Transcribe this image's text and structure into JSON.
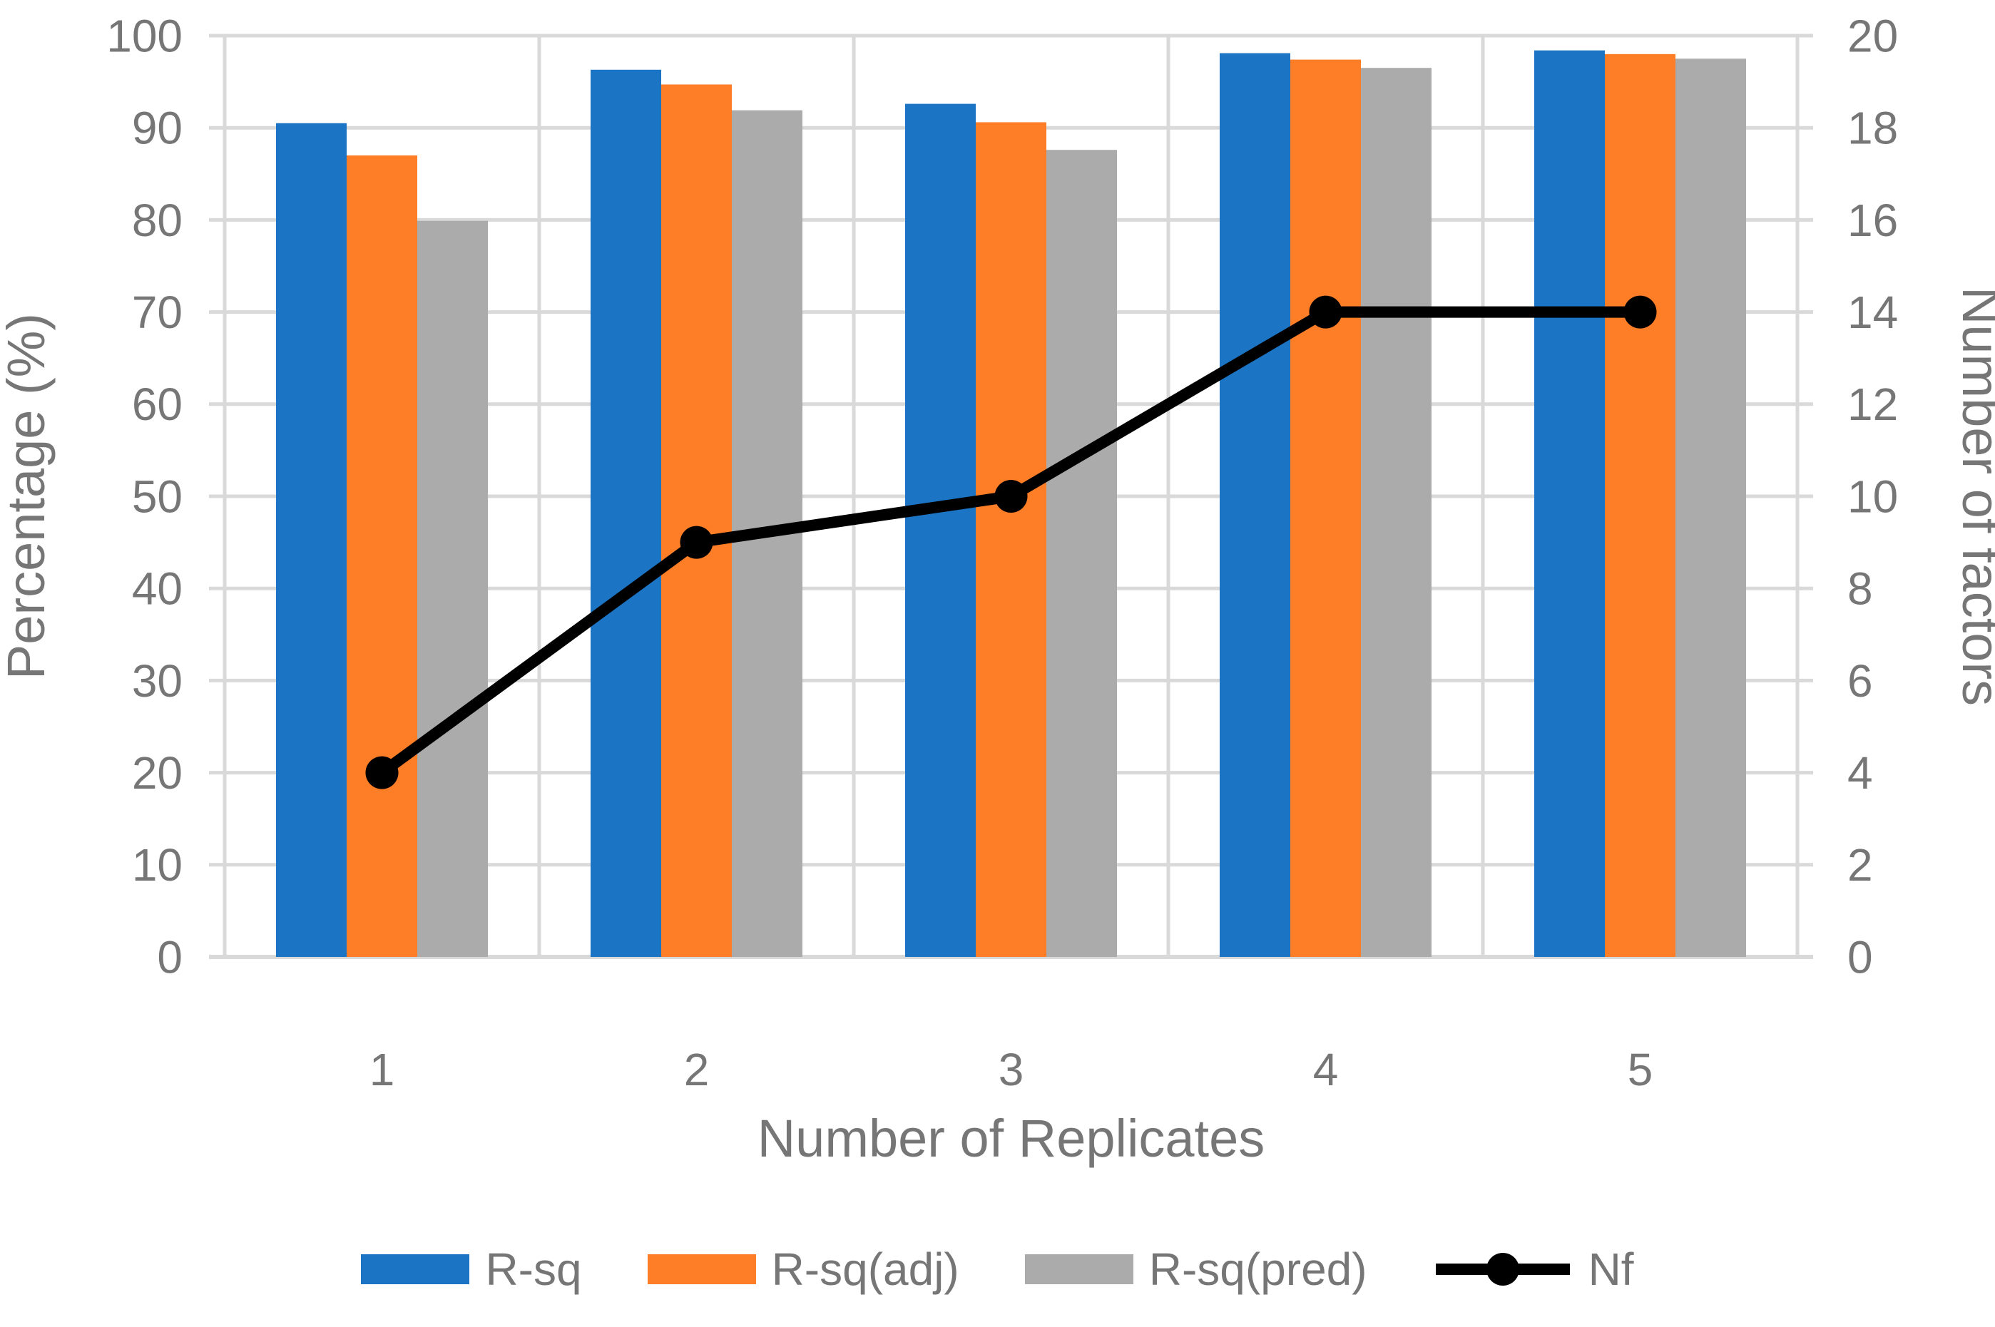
{
  "chart_data": {
    "type": "bar",
    "subtype": "grouped-bar-with-line-combo",
    "categories": [
      "1",
      "2",
      "3",
      "4",
      "5"
    ],
    "bar_series": [
      {
        "name": "R-sq",
        "color": "#1C74C4",
        "axis": "left",
        "values": [
          90.5,
          96.3,
          92.6,
          98.1,
          98.4
        ]
      },
      {
        "name": "R-sq(adj)",
        "color": "#FD7E27",
        "axis": "left",
        "values": [
          87.0,
          94.7,
          90.6,
          97.4,
          98.0
        ]
      },
      {
        "name": "R-sq(pred)",
        "color": "#ABABAB",
        "axis": "left",
        "values": [
          79.9,
          91.9,
          87.6,
          96.5,
          97.5
        ]
      }
    ],
    "line_series": {
      "name": "Nf",
      "color": "#000000",
      "axis": "right",
      "values": [
        4,
        9,
        10,
        14,
        14
      ]
    },
    "title": "",
    "xlabel": "Number of Replicates",
    "ylabel_left": "Percentage (%)",
    "ylabel_right": "Number of factors",
    "ylim_left": [
      0,
      100
    ],
    "ytick_step_left": 10,
    "ylim_right": [
      0,
      20
    ],
    "ytick_step_right": 2,
    "grid": "major horizontal and vertical, light gray",
    "legend_position": "bottom center",
    "colors": {
      "grid": "#D9D9D9",
      "text": "#767676",
      "line": "#000000",
      "background": "#FFFFFF"
    }
  }
}
